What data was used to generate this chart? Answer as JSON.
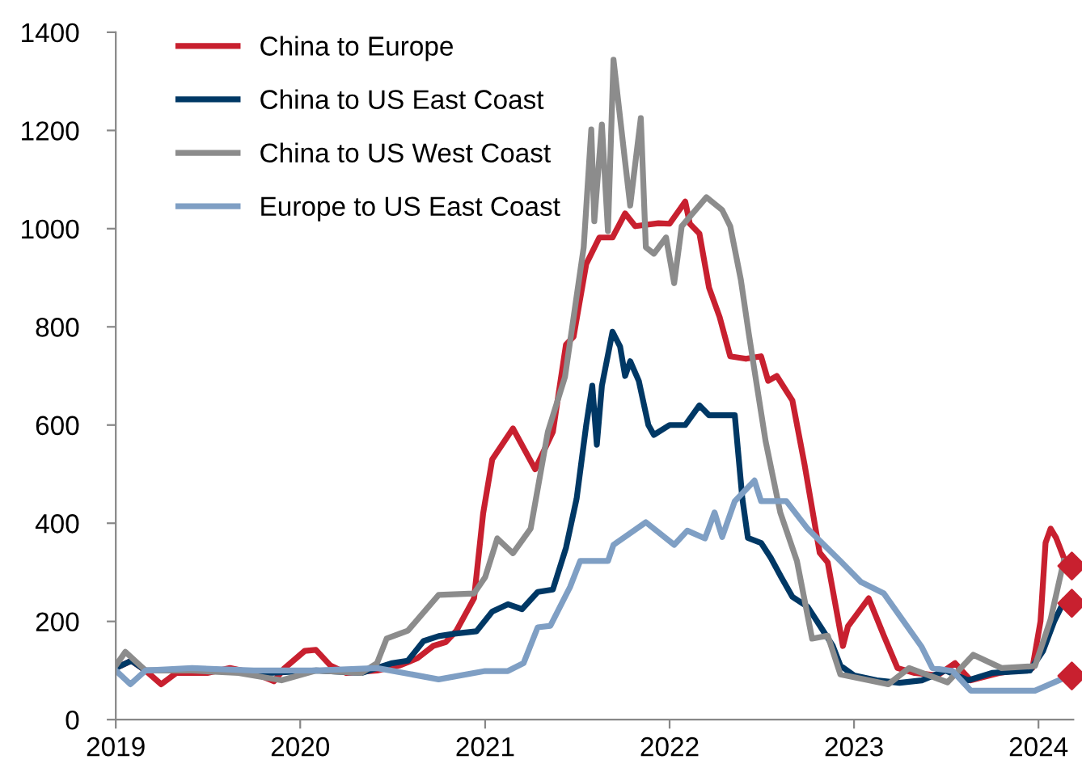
{
  "chart_data": {
    "type": "line",
    "xlim": [
      "2019-01-01",
      "2024-03-10"
    ],
    "xticks": [
      {
        "value": "2019-01-01",
        "label": "2019"
      },
      {
        "value": "2020-01-01",
        "label": "2020"
      },
      {
        "value": "2021-01-01",
        "label": "2021"
      },
      {
        "value": "2022-01-01",
        "label": "2022"
      },
      {
        "value": "2023-01-01",
        "label": "2023"
      },
      {
        "value": "2024-01-01",
        "label": "2024"
      }
    ],
    "ylim": [
      0,
      1400
    ],
    "yticks": [
      0,
      200,
      400,
      600,
      800,
      1000,
      1200,
      1400
    ],
    "grid": false,
    "legend": "top left",
    "marker": "none",
    "line_style": "solid",
    "series": [
      {
        "name": "China to Europe",
        "color": "#c8202f",
        "x": [
          "2019-01-01",
          "2019-02-01",
          "2019-03-01",
          "2019-04-01",
          "2019-05-01",
          "2019-07-01",
          "2019-08-15",
          "2019-10-01",
          "2019-11-10",
          "2019-12-01",
          "2020-01-10",
          "2020-02-01",
          "2020-03-01",
          "2020-04-01",
          "2020-06-01",
          "2020-07-15",
          "2020-08-20",
          "2020-09-20",
          "2020-10-15",
          "2020-11-05",
          "2020-12-10",
          "2020-12-28",
          "2021-01-15",
          "2021-02-25",
          "2021-04-10",
          "2021-05-15",
          "2021-06-10",
          "2021-06-25",
          "2021-07-20",
          "2021-08-15",
          "2021-09-10",
          "2021-10-05",
          "2021-10-25",
          "2021-12-10",
          "2022-01-01",
          "2022-02-01",
          "2022-02-10",
          "2022-03-01",
          "2022-03-20",
          "2022-04-10",
          "2022-05-01",
          "2022-06-01",
          "2022-07-01",
          "2022-07-15",
          "2022-08-01",
          "2022-09-01",
          "2022-09-25",
          "2022-10-25",
          "2022-11-10",
          "2022-12-10",
          "2022-12-20",
          "2023-01-30",
          "2023-03-01",
          "2023-03-28",
          "2023-05-01",
          "2023-06-15",
          "2023-07-20",
          "2023-08-20",
          "2023-10-15",
          "2023-12-20",
          "2024-01-05",
          "2024-01-15",
          "2024-01-25",
          "2024-02-05",
          "2024-02-20"
        ],
        "values": [
          105,
          120,
          100,
          72,
          95,
          95,
          105,
          95,
          78,
          105,
          140,
          142,
          110,
          95,
          100,
          110,
          125,
          150,
          158,
          181,
          247,
          420,
          530,
          593,
          510,
          586,
          764,
          780,
          928,
          982,
          982,
          1031,
          1005,
          1011,
          1010,
          1055,
          1010,
          990,
          880,
          820,
          740,
          735,
          740,
          690,
          700,
          650,
          520,
          340,
          320,
          150,
          190,
          247,
          171,
          105,
          95,
          90,
          115,
          80,
          95,
          105,
          200,
          360,
          389,
          370,
          330
        ]
      },
      {
        "name": "China to US East Coast",
        "color": "#003865",
        "x": [
          "2019-01-01",
          "2019-02-01",
          "2019-03-01",
          "2019-05-01",
          "2019-08-01",
          "2019-11-01",
          "2020-02-01",
          "2020-05-01",
          "2020-07-01",
          "2020-08-01",
          "2020-09-01",
          "2020-10-01",
          "2020-11-01",
          "2020-12-15",
          "2021-01-15",
          "2021-02-15",
          "2021-03-15",
          "2021-04-15",
          "2021-05-15",
          "2021-06-10",
          "2021-07-01",
          "2021-07-20",
          "2021-08-01",
          "2021-08-10",
          "2021-08-20",
          "2021-09-10",
          "2021-09-25",
          "2021-10-05",
          "2021-10-15",
          "2021-11-01",
          "2021-11-20",
          "2021-12-01",
          "2022-01-01",
          "2022-02-01",
          "2022-03-01",
          "2022-03-20",
          "2022-04-15",
          "2022-05-10",
          "2022-05-25",
          "2022-06-05",
          "2022-07-01",
          "2022-07-20",
          "2022-08-10",
          "2022-09-01",
          "2022-10-01",
          "2022-10-20",
          "2022-11-20",
          "2022-12-05",
          "2023-01-01",
          "2023-02-15",
          "2023-04-01",
          "2023-05-15",
          "2023-07-01",
          "2023-08-15",
          "2023-10-01",
          "2023-12-15",
          "2024-01-10",
          "2024-02-01",
          "2024-02-20"
        ],
        "values": [
          105,
          120,
          100,
          100,
          100,
          95,
          100,
          95,
          115,
          120,
          160,
          170,
          175,
          180,
          220,
          235,
          225,
          260,
          265,
          350,
          450,
          600,
          680,
          560,
          680,
          790,
          760,
          700,
          730,
          690,
          600,
          580,
          600,
          600,
          640,
          620,
          620,
          620,
          450,
          370,
          360,
          330,
          290,
          250,
          230,
          200,
          150,
          110,
          90,
          80,
          75,
          80,
          100,
          80,
          95,
          100,
          140,
          200,
          240
        ]
      },
      {
        "name": "China to US West Coast",
        "color": "#8c8c8c",
        "x": [
          "2019-01-01",
          "2019-01-20",
          "2019-03-01",
          "2019-06-01",
          "2019-09-01",
          "2019-11-25",
          "2020-02-01",
          "2020-05-01",
          "2020-06-01",
          "2020-06-20",
          "2020-08-01",
          "2020-10-01",
          "2020-12-10",
          "2021-01-01",
          "2021-01-25",
          "2021-02-25",
          "2021-04-01",
          "2021-05-05",
          "2021-06-08",
          "2021-07-15",
          "2021-07-30",
          "2021-08-05",
          "2021-08-20",
          "2021-09-01",
          "2021-09-12",
          "2021-10-05",
          "2021-10-15",
          "2021-11-05",
          "2021-11-15",
          "2021-12-01",
          "2021-12-25",
          "2022-01-10",
          "2022-01-25",
          "2022-03-15",
          "2022-04-15",
          "2022-05-01",
          "2022-05-22",
          "2022-06-07",
          "2022-06-20",
          "2022-07-10",
          "2022-08-08",
          "2022-09-10",
          "2022-10-10",
          "2022-11-10",
          "2022-12-05",
          "2023-03-10",
          "2023-04-20",
          "2023-07-05",
          "2023-08-25",
          "2023-10-20",
          "2023-12-25",
          "2024-01-25",
          "2024-02-20"
        ],
        "values": [
          110,
          138,
          100,
          100,
          95,
          80,
          100,
          95,
          115,
          165,
          181,
          254,
          257,
          290,
          369,
          339,
          389,
          586,
          698,
          962,
          1202,
          1015,
          1212,
          995,
          1344,
          1136,
          1047,
          1225,
          962,
          949,
          982,
          889,
          1005,
          1064,
          1038,
          1005,
          896,
          784,
          698,
          567,
          422,
          323,
          165,
          171,
          92,
          72,
          105,
          76,
          132,
          105,
          109,
          204,
          323
        ]
      },
      {
        "name": "Europe to US East Coast",
        "color": "#7f9fc4",
        "x": [
          "2019-01-01",
          "2019-01-30",
          "2019-03-01",
          "2019-06-01",
          "2019-10-01",
          "2020-02-01",
          "2020-06-01",
          "2020-10-01",
          "2021-01-01",
          "2021-02-15",
          "2021-03-18",
          "2021-04-15",
          "2021-05-10",
          "2021-06-18",
          "2021-07-08",
          "2021-09-01",
          "2021-09-12",
          "2021-11-15",
          "2022-01-10",
          "2022-02-05",
          "2022-03-12",
          "2022-03-31",
          "2022-04-15",
          "2022-05-10",
          "2022-06-18",
          "2022-07-01",
          "2022-08-20",
          "2022-10-01",
          "2022-12-05",
          "2023-01-15",
          "2023-03-01",
          "2023-05-15",
          "2023-06-05",
          "2023-07-15",
          "2023-08-20",
          "2023-12-25",
          "2024-02-15"
        ],
        "values": [
          100,
          72,
          100,
          105,
          100,
          100,
          105,
          82,
          99,
          99,
          115,
          188,
          191,
          270,
          323,
          323,
          356,
          402,
          356,
          385,
          369,
          422,
          372,
          445,
          487,
          445,
          445,
          389,
          323,
          280,
          257,
          148,
          105,
          99,
          59,
          59,
          82
        ]
      },
      {
        "type": "scatter",
        "color": "#c8202f",
        "marker": "diamond",
        "x": [
          "2024-03-07",
          "2024-03-07",
          "2024-03-07"
        ],
        "values": [
          313,
          237,
          89
        ]
      }
    ]
  }
}
